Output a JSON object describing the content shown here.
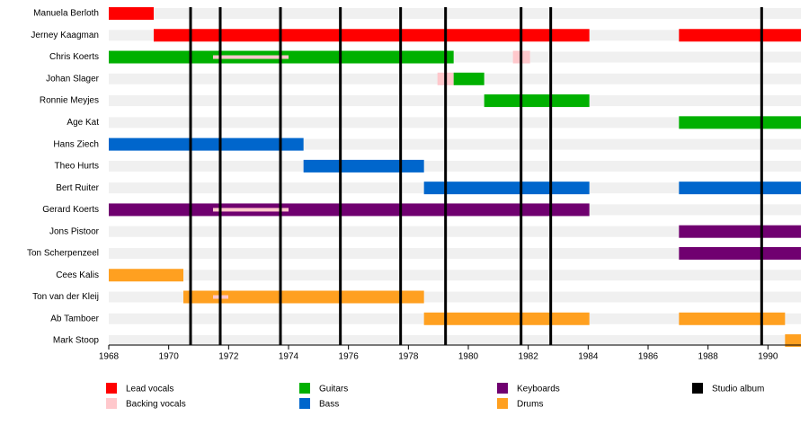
{
  "chart_data": {
    "type": "timeline",
    "xlim": [
      1968,
      1991.1
    ],
    "xticks": [
      1968,
      1970,
      1972,
      1974,
      1976,
      1978,
      1980,
      1982,
      1984,
      1986,
      1988,
      1990
    ],
    "series": [
      {
        "name": "Lead vocals",
        "color": "#ff0000"
      },
      {
        "name": "Backing vocals",
        "color": "#ffc8cc"
      },
      {
        "name": "Guitars",
        "color": "#00b000"
      },
      {
        "name": "Bass",
        "color": "#0066cc"
      },
      {
        "name": "Keyboards",
        "color": "#700070"
      },
      {
        "name": "Drums",
        "color": "#ffa020"
      }
    ],
    "rows": [
      {
        "name": "Manuela Berloth",
        "bars": [
          {
            "series": 0,
            "start": 1968,
            "end": 1969.5
          }
        ]
      },
      {
        "name": "Jerney Kaagman",
        "bars": [
          {
            "series": 0,
            "start": 1969.5,
            "end": 1984.04
          },
          {
            "series": 0,
            "start": 1987.03,
            "end": 1991.1
          }
        ]
      },
      {
        "name": "Chris Koerts",
        "bars": [
          {
            "series": 2,
            "start": 1968,
            "end": 1979.51
          },
          {
            "series": 1,
            "start": 1971.48,
            "end": 1974.0
          },
          {
            "series": 1,
            "start": 1981.49,
            "end": 1982.06
          }
        ]
      },
      {
        "name": "Johan Slager",
        "bars": [
          {
            "series": 1,
            "start": 1978.97,
            "end": 1979.51
          },
          {
            "series": 2,
            "start": 1979.51,
            "end": 1980.53
          }
        ]
      },
      {
        "name": "Ronnie Meyjes",
        "bars": [
          {
            "series": 2,
            "start": 1980.53,
            "end": 1984.04
          }
        ]
      },
      {
        "name": "Age Kat",
        "bars": [
          {
            "series": 2,
            "start": 1987.03,
            "end": 1991.1
          }
        ]
      },
      {
        "name": "Hans Ziech",
        "bars": [
          {
            "series": 3,
            "start": 1968,
            "end": 1974.5
          }
        ]
      },
      {
        "name": "Theo Hurts",
        "bars": [
          {
            "series": 3,
            "start": 1974.5,
            "end": 1978.52
          }
        ]
      },
      {
        "name": "Bert Ruiter",
        "bars": [
          {
            "series": 3,
            "start": 1978.52,
            "end": 1984.04
          },
          {
            "series": 3,
            "start": 1987.03,
            "end": 1991.1
          }
        ]
      },
      {
        "name": "Gerard Koerts",
        "bars": [
          {
            "series": 4,
            "start": 1968,
            "end": 1984.04
          },
          {
            "series": 1,
            "start": 1971.48,
            "end": 1974.0
          }
        ]
      },
      {
        "name": "Jons Pistoor",
        "bars": [
          {
            "series": 4,
            "start": 1987.03,
            "end": 1991.1
          }
        ]
      },
      {
        "name": "Ton Scherpenzeel",
        "bars": [
          {
            "series": 4,
            "start": 1987.03,
            "end": 1991.1
          }
        ]
      },
      {
        "name": "Cees Kalis",
        "bars": [
          {
            "series": 5,
            "start": 1968,
            "end": 1970.49
          }
        ]
      },
      {
        "name": "Ton van der Kleij",
        "bars": [
          {
            "series": 5,
            "start": 1970.49,
            "end": 1978.52
          },
          {
            "series": 1,
            "start": 1971.48,
            "end": 1971.99
          }
        ]
      },
      {
        "name": "Ab Tamboer",
        "bars": [
          {
            "series": 5,
            "start": 1978.52,
            "end": 1984.04
          },
          {
            "series": 5,
            "start": 1987.03,
            "end": 1990.57
          }
        ]
      },
      {
        "name": "Mark Stoop",
        "bars": [
          {
            "series": 5,
            "start": 1990.57,
            "end": 1991.1
          }
        ]
      }
    ],
    "albums": {
      "name": "Studio album",
      "color": "#000000",
      "x": [
        1970.73,
        1971.72,
        1973.73,
        1975.73,
        1977.74,
        1979.24,
        1981.76,
        1982.75,
        1989.79
      ]
    }
  }
}
